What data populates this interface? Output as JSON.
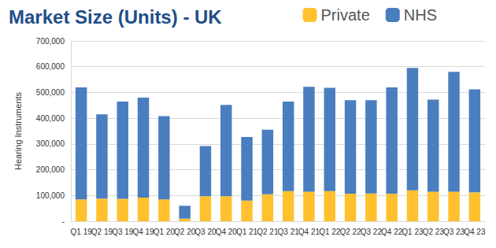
{
  "chart_data": {
    "type": "bar",
    "title": "Market Size (Units) - UK",
    "y_label": "Hearing Instruments",
    "categories": [
      "Q1 19",
      "Q2 19",
      "Q3 19",
      "Q4 19",
      "Q1 20",
      "Q2 20",
      "Q3 20",
      "Q4 20",
      "Q1 21",
      "Q2 21",
      "Q3 21",
      "Q4 21",
      "Q1 22",
      "Q2 22",
      "Q3 22",
      "Q4 22",
      "Q1 23",
      "Q2 23",
      "Q3 23",
      "Q4 23"
    ],
    "series": [
      {
        "name": "Private",
        "color": "#FFC12E",
        "values": [
          85000,
          88000,
          87000,
          92000,
          85000,
          10000,
          97000,
          97000,
          80000,
          105000,
          117000,
          115000,
          117000,
          107000,
          108000,
          107000,
          120000,
          115000,
          115000,
          112000
        ]
      },
      {
        "name": "NHS",
        "color": "#4A7EBF",
        "values": [
          435000,
          327000,
          378000,
          388000,
          323000,
          50000,
          195000,
          355000,
          247000,
          250000,
          348000,
          407000,
          401000,
          363000,
          362000,
          413000,
          475000,
          357000,
          465000,
          400000
        ]
      }
    ],
    "stacked": true,
    "ylim": [
      0,
      700000
    ],
    "yticks": [
      {
        "value": 0,
        "label": "-"
      },
      {
        "value": 100000,
        "label": "100,000"
      },
      {
        "value": 200000,
        "label": "200,000"
      },
      {
        "value": 300000,
        "label": "300,000"
      },
      {
        "value": 400000,
        "label": "400,000"
      },
      {
        "value": 500000,
        "label": "500,000"
      },
      {
        "value": 600000,
        "label": "600,000"
      },
      {
        "value": 700000,
        "label": "700,000"
      }
    ],
    "grid": true,
    "legend": "top-right"
  }
}
